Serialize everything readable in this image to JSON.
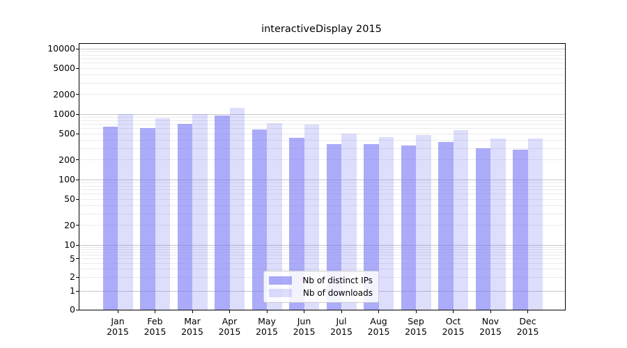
{
  "chart_data": {
    "type": "bar",
    "title": "interactiveDisplay 2015",
    "year_label": "2015",
    "categories": [
      "Jan",
      "Feb",
      "Mar",
      "Apr",
      "May",
      "Jun",
      "Jul",
      "Aug",
      "Sep",
      "Oct",
      "Nov",
      "Dec"
    ],
    "series": [
      {
        "name": "Nb of distinct IPs",
        "color": "#7878f5",
        "alpha": 0.62,
        "values": [
          640,
          620,
          710,
          960,
          590,
          440,
          350,
          345,
          330,
          380,
          305,
          285
        ]
      },
      {
        "name": "Nb of downloads",
        "color": "#7878f5",
        "alpha": 0.25,
        "values": [
          1000,
          875,
          1000,
          1240,
          735,
          690,
          505,
          450,
          485,
          570,
          430,
          420
        ]
      }
    ],
    "yscale": "symlog",
    "yticks": [
      0,
      1,
      2,
      5,
      10,
      20,
      50,
      100,
      200,
      500,
      1000,
      2000,
      5000,
      10000
    ],
    "ylim": [
      0,
      12000
    ],
    "grid": "both",
    "grid_major_color": "#c6c6c6",
    "grid_minor_color": "#eaeaea",
    "legend_position": "lower center"
  }
}
